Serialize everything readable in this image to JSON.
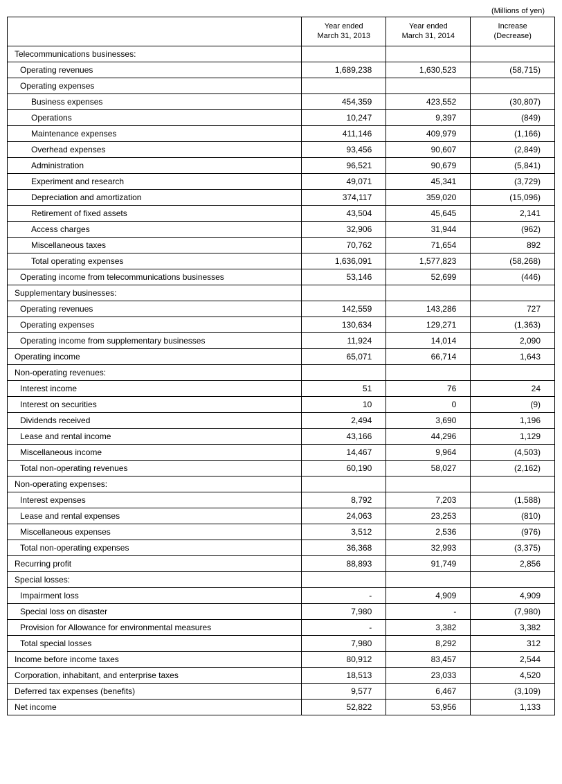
{
  "unit_label": "(Millions of yen)",
  "headers": {
    "label": "",
    "col1": "Year ended\nMarch 31, 2013",
    "col2": "Year ended\nMarch 31, 2014",
    "col3": "Increase\n(Decrease)"
  },
  "rows": [
    {
      "label": "Telecommunications businesses:",
      "indent": 0,
      "v1": "",
      "v2": "",
      "v3": ""
    },
    {
      "label": "Operating revenues",
      "indent": 1,
      "v1": "1,689,238",
      "v2": "1,630,523",
      "v3": "(58,715)"
    },
    {
      "label": "Operating expenses",
      "indent": 1,
      "v1": "",
      "v2": "",
      "v3": ""
    },
    {
      "label": "Business expenses",
      "indent": 2,
      "v1": "454,359",
      "v2": "423,552",
      "v3": "(30,807)"
    },
    {
      "label": "Operations",
      "indent": 2,
      "v1": "10,247",
      "v2": "9,397",
      "v3": "(849)"
    },
    {
      "label": "Maintenance expenses",
      "indent": 2,
      "v1": "411,146",
      "v2": "409,979",
      "v3": "(1,166)"
    },
    {
      "label": "Overhead expenses",
      "indent": 2,
      "v1": "93,456",
      "v2": "90,607",
      "v3": "(2,849)"
    },
    {
      "label": "Administration",
      "indent": 2,
      "v1": "96,521",
      "v2": "90,679",
      "v3": "(5,841)"
    },
    {
      "label": "Experiment and research",
      "indent": 2,
      "v1": "49,071",
      "v2": "45,341",
      "v3": "(3,729)"
    },
    {
      "label": "Depreciation and amortization",
      "indent": 2,
      "v1": "374,117",
      "v2": "359,020",
      "v3": "(15,096)"
    },
    {
      "label": "Retirement of fixed assets",
      "indent": 2,
      "v1": "43,504",
      "v2": "45,645",
      "v3": "2,141"
    },
    {
      "label": "Access charges",
      "indent": 2,
      "v1": "32,906",
      "v2": "31,944",
      "v3": "(962)"
    },
    {
      "label": "Miscellaneous taxes",
      "indent": 2,
      "v1": "70,762",
      "v2": "71,654",
      "v3": "892"
    },
    {
      "label": "Total operating expenses",
      "indent": 2,
      "v1": "1,636,091",
      "v2": "1,577,823",
      "v3": "(58,268)"
    },
    {
      "label": "Operating income from telecommunications businesses",
      "indent": 1,
      "v1": "53,146",
      "v2": "52,699",
      "v3": "(446)"
    },
    {
      "label": "Supplementary businesses:",
      "indent": 0,
      "v1": "",
      "v2": "",
      "v3": ""
    },
    {
      "label": "Operating revenues",
      "indent": 1,
      "v1": "142,559",
      "v2": "143,286",
      "v3": "727"
    },
    {
      "label": "Operating expenses",
      "indent": 1,
      "v1": "130,634",
      "v2": "129,271",
      "v3": "(1,363)"
    },
    {
      "label": "Operating income from supplementary businesses",
      "indent": 1,
      "v1": "11,924",
      "v2": "14,014",
      "v3": "2,090"
    },
    {
      "label": "Operating income",
      "indent": 0,
      "v1": "65,071",
      "v2": "66,714",
      "v3": "1,643"
    },
    {
      "label": "Non-operating revenues:",
      "indent": 0,
      "v1": "",
      "v2": "",
      "v3": ""
    },
    {
      "label": "Interest income",
      "indent": 1,
      "v1": "51",
      "v2": "76",
      "v3": "24"
    },
    {
      "label": "Interest on securities",
      "indent": 1,
      "v1": "10",
      "v2": "0",
      "v3": "(9)"
    },
    {
      "label": "Dividends received",
      "indent": 1,
      "v1": "2,494",
      "v2": "3,690",
      "v3": "1,196"
    },
    {
      "label": "Lease and rental income",
      "indent": 1,
      "v1": "43,166",
      "v2": "44,296",
      "v3": "1,129"
    },
    {
      "label": "Miscellaneous income",
      "indent": 1,
      "v1": "14,467",
      "v2": "9,964",
      "v3": "(4,503)"
    },
    {
      "label": "Total non-operating revenues",
      "indent": 1,
      "v1": "60,190",
      "v2": "58,027",
      "v3": "(2,162)"
    },
    {
      "label": "Non-operating expenses:",
      "indent": 0,
      "v1": "",
      "v2": "",
      "v3": ""
    },
    {
      "label": "Interest expenses",
      "indent": 1,
      "v1": "8,792",
      "v2": "7,203",
      "v3": "(1,588)"
    },
    {
      "label": "Lease and rental expenses",
      "indent": 1,
      "v1": "24,063",
      "v2": "23,253",
      "v3": "(810)"
    },
    {
      "label": "Miscellaneous expenses",
      "indent": 1,
      "v1": "3,512",
      "v2": "2,536",
      "v3": "(976)"
    },
    {
      "label": "Total non-operating expenses",
      "indent": 1,
      "v1": "36,368",
      "v2": "32,993",
      "v3": "(3,375)"
    },
    {
      "label": "Recurring profit",
      "indent": 0,
      "v1": "88,893",
      "v2": "91,749",
      "v3": "2,856"
    },
    {
      "label": "Special losses:",
      "indent": 0,
      "v1": "",
      "v2": "",
      "v3": ""
    },
    {
      "label": "Impairment loss",
      "indent": 1,
      "v1": "-",
      "v2": "4,909",
      "v3": "4,909"
    },
    {
      "label": "Special loss on disaster",
      "indent": 1,
      "v1": "7,980",
      "v2": "-",
      "v3": "(7,980)"
    },
    {
      "label": "Provision for Allowance for environmental measures",
      "indent": 1,
      "v1": "-",
      "v2": "3,382",
      "v3": "3,382"
    },
    {
      "label": "Total special losses",
      "indent": 1,
      "v1": "7,980",
      "v2": "8,292",
      "v3": "312"
    },
    {
      "label": "Income before income taxes",
      "indent": 0,
      "v1": "80,912",
      "v2": "83,457",
      "v3": "2,544"
    },
    {
      "label": "Corporation, inhabitant, and enterprise taxes",
      "indent": 0,
      "v1": "18,513",
      "v2": "23,033",
      "v3": "4,520"
    },
    {
      "label": "Deferred tax expenses (benefits)",
      "indent": 0,
      "v1": "9,577",
      "v2": "6,467",
      "v3": "(3,109)"
    },
    {
      "label": "Net income",
      "indent": 0,
      "v1": "52,822",
      "v2": "53,956",
      "v3": "1,133"
    }
  ]
}
